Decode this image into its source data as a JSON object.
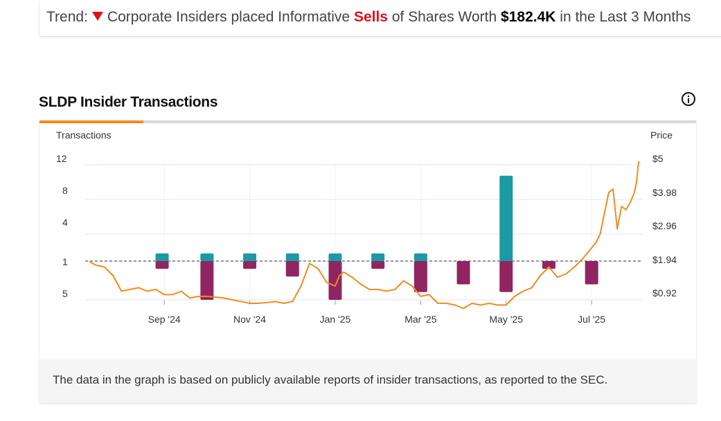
{
  "trend": {
    "prefix": "Trend:",
    "text_before": "Corporate Insiders placed Informative",
    "highlight": "Sells",
    "text_middle": "of Shares Worth",
    "amount": "$182.4K",
    "text_after": "in the Last 3 Months"
  },
  "section": {
    "title": "SLDP Insider Transactions"
  },
  "footer": {
    "note": "The data in the graph is based on publicly available reports of insider transactions, as reported to the SEC."
  },
  "colors": {
    "buy": "#1a9ba4",
    "sell": "#912561",
    "price_line": "#f28b1e",
    "baseline": "#777777",
    "tab_active": "#f28b1e"
  },
  "chart_data": {
    "type": "bar",
    "left_axis": {
      "label": "Transactions",
      "upper_ticks": [
        "12",
        "8",
        "4"
      ],
      "center_tick": "1",
      "lower_ticks": [
        "5"
      ]
    },
    "right_axis": {
      "label": "Price",
      "ticks": [
        "$5",
        "$3.98",
        "$2.96",
        "$1.94",
        "$0.92"
      ],
      "range": [
        0.92,
        5
      ]
    },
    "x_ticks": [
      "Sep '24",
      "Nov '24",
      "Jan '25",
      "Mar '25",
      "May '25",
      "Jul '25"
    ],
    "x_tick_months": [
      1,
      3,
      5,
      7,
      9,
      11
    ],
    "x_range": [
      -0.85,
      12.18
    ],
    "series": [
      {
        "name": "Buy",
        "x": [
          0.95,
          2.0,
          3.0,
          4.0,
          5.0,
          6.0,
          7.0,
          9.0
        ],
        "values": [
          1,
          1,
          1,
          1,
          1,
          1,
          1,
          11
        ]
      },
      {
        "name": "Sell",
        "x": [
          0.95,
          2.0,
          3.0,
          4.0,
          5.0,
          6.0,
          7.0,
          8.0,
          9.0,
          10.0,
          11.0
        ],
        "values": [
          1,
          5,
          1,
          2,
          5,
          1,
          4,
          3,
          4,
          1,
          3
        ]
      },
      {
        "name": "Price",
        "x": [
          -0.75,
          -0.6,
          -0.4,
          -0.2,
          0.0,
          0.2,
          0.4,
          0.6,
          0.8,
          1.0,
          1.2,
          1.4,
          1.6,
          1.8,
          2.0,
          2.2,
          2.4,
          2.6,
          2.8,
          3.0,
          3.2,
          3.4,
          3.6,
          3.8,
          4.0,
          4.2,
          4.4,
          4.6,
          4.8,
          5.0,
          5.1,
          5.2,
          5.4,
          5.6,
          5.8,
          6.0,
          6.2,
          6.4,
          6.6,
          6.8,
          7.0,
          7.2,
          7.4,
          7.6,
          7.8,
          8.0,
          8.2,
          8.4,
          8.6,
          8.8,
          9.0,
          9.2,
          9.4,
          9.6,
          9.8,
          10.0,
          10.2,
          10.4,
          10.6,
          10.8,
          11.0,
          11.1,
          11.2,
          11.3,
          11.4,
          11.5,
          11.6,
          11.7,
          11.8,
          11.9,
          12.0,
          12.05,
          12.1
        ],
        "values": [
          2.0,
          1.9,
          1.85,
          1.6,
          1.15,
          1.2,
          1.25,
          1.15,
          1.2,
          1.05,
          1.05,
          1.15,
          0.95,
          1.0,
          1.0,
          0.98,
          0.95,
          0.9,
          0.85,
          0.8,
          0.8,
          0.82,
          0.85,
          0.8,
          0.85,
          1.3,
          1.95,
          1.8,
          1.4,
          1.3,
          1.6,
          1.7,
          1.55,
          1.35,
          1.2,
          1.2,
          1.15,
          1.2,
          1.45,
          1.3,
          1.0,
          1.05,
          0.8,
          0.8,
          0.75,
          0.65,
          0.8,
          0.75,
          0.8,
          0.75,
          0.75,
          1.0,
          1.15,
          1.25,
          1.6,
          1.85,
          1.55,
          1.65,
          1.85,
          2.1,
          2.4,
          2.55,
          2.8,
          3.4,
          4.0,
          4.1,
          2.95,
          3.6,
          3.5,
          3.7,
          4.0,
          4.3,
          4.9
        ]
      }
    ]
  }
}
